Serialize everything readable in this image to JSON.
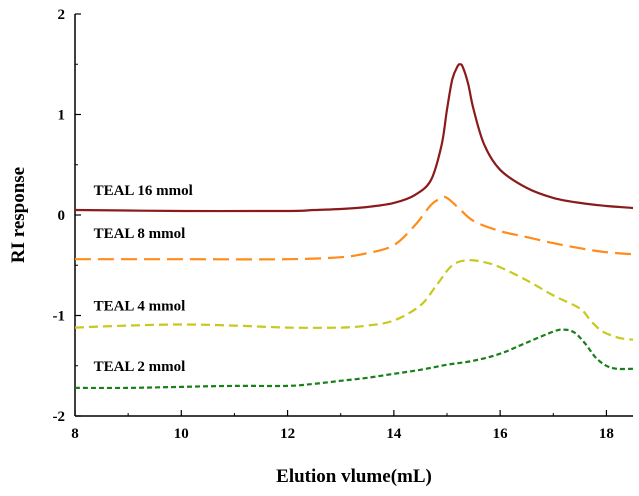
{
  "chart_data": {
    "type": "line",
    "xlabel": "Elution vlume(mL)",
    "ylabel": "RI response",
    "xlim": [
      8,
      18.5
    ],
    "ylim": [
      -2,
      2
    ],
    "xticks": [
      8,
      10,
      12,
      14,
      16,
      18
    ],
    "yticks": [
      -2,
      -1,
      0,
      1,
      2
    ],
    "grid": false,
    "series": [
      {
        "name": "TEAL 16 mmol",
        "color": "#8b1a1a",
        "dash": "solid",
        "x": [
          8,
          10,
          12,
          12.5,
          13,
          13.5,
          14,
          14.4,
          14.7,
          14.9,
          15.0,
          15.1,
          15.2,
          15.25,
          15.3,
          15.4,
          15.5,
          15.7,
          16.0,
          16.5,
          17,
          17.5,
          18,
          18.5
        ],
        "y": [
          0.05,
          0.04,
          0.04,
          0.05,
          0.06,
          0.08,
          0.12,
          0.2,
          0.35,
          0.7,
          1.05,
          1.35,
          1.48,
          1.5,
          1.47,
          1.3,
          1.05,
          0.7,
          0.45,
          0.27,
          0.17,
          0.12,
          0.09,
          0.07
        ]
      },
      {
        "name": "TEAL 8 mmol",
        "color": "#ff8c1a",
        "dash": "longdash",
        "x": [
          8,
          10,
          12,
          13,
          13.5,
          14,
          14.4,
          14.7,
          14.9,
          15.0,
          15.2,
          15.5,
          16,
          16.5,
          17,
          17.5,
          18,
          18.5
        ],
        "y": [
          -0.44,
          -0.44,
          -0.44,
          -0.42,
          -0.38,
          -0.3,
          -0.1,
          0.1,
          0.17,
          0.17,
          0.08,
          -0.06,
          -0.16,
          -0.22,
          -0.28,
          -0.33,
          -0.37,
          -0.39
        ]
      },
      {
        "name": "TEAL 4 mmol",
        "color": "#c8c81e",
        "dash": "dash",
        "x": [
          8,
          9,
          10,
          11,
          12,
          13,
          13.5,
          14,
          14.5,
          14.8,
          15.1,
          15.4,
          15.7,
          16,
          16.5,
          17,
          17.5,
          17.7,
          17.9,
          18.1,
          18.3,
          18.5
        ],
        "y": [
          -1.12,
          -1.1,
          -1.09,
          -1.1,
          -1.12,
          -1.12,
          -1.1,
          -1.05,
          -0.9,
          -0.7,
          -0.5,
          -0.45,
          -0.47,
          -0.52,
          -0.65,
          -0.8,
          -0.93,
          -1.05,
          -1.15,
          -1.2,
          -1.23,
          -1.24
        ]
      },
      {
        "name": "TEAL 2 mmol",
        "color": "#1a7f1a",
        "dash": "shortdash",
        "x": [
          8,
          9,
          10,
          11,
          12,
          12.5,
          13,
          13.5,
          14,
          14.5,
          15,
          15.5,
          16,
          16.5,
          17,
          17.2,
          17.4,
          17.6,
          17.8,
          18,
          18.2,
          18.5
        ],
        "y": [
          -1.72,
          -1.72,
          -1.71,
          -1.7,
          -1.7,
          -1.68,
          -1.65,
          -1.62,
          -1.58,
          -1.54,
          -1.49,
          -1.45,
          -1.38,
          -1.27,
          -1.16,
          -1.14,
          -1.17,
          -1.28,
          -1.42,
          -1.5,
          -1.53,
          -1.53
        ]
      }
    ],
    "annotations": [
      {
        "text": "TEAL 16 mmol",
        "x": 8.35,
        "y": 0.2
      },
      {
        "text": "TEAL 8 mmol",
        "x": 8.35,
        "y": -0.23
      },
      {
        "text": "TEAL 4 mmol",
        "x": 8.35,
        "y": -0.95
      },
      {
        "text": "TEAL 2 mmol",
        "x": 8.35,
        "y": -1.55
      }
    ]
  }
}
